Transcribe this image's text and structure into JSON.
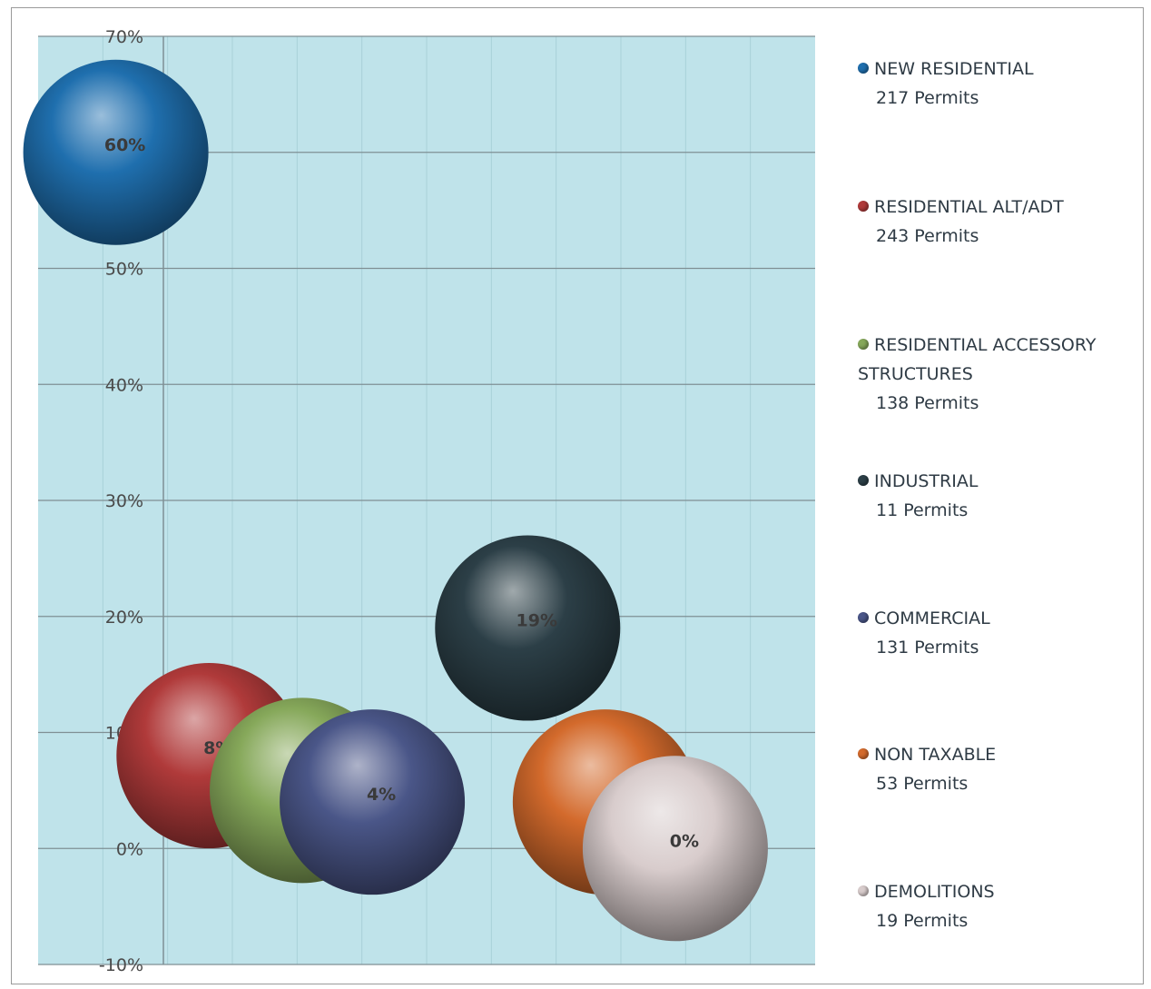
{
  "chart_data": {
    "type": "scatter",
    "subtype": "bubble",
    "title": "",
    "xlabel": "",
    "ylabel": "",
    "ylim": [
      -0.1,
      0.7
    ],
    "y_ticks": [
      "-10%",
      "0%",
      "10%",
      "20%",
      "30%",
      "40%",
      "50%",
      "60%",
      "70%"
    ],
    "y_tick_values": [
      -0.1,
      0,
      0.1,
      0.2,
      0.3,
      0.4,
      0.5,
      0.6,
      0.7
    ],
    "grid": true,
    "plot_background": "#bfe3ea",
    "legend_position": "right",
    "series": [
      {
        "name": "NEW RESIDENTIAL",
        "permits_label": "217 Permits",
        "x": 1,
        "y": 0.6,
        "label": "60%",
        "color": "#1f6fae"
      },
      {
        "name": "RESIDENTIAL ALT/ADT",
        "permits_label": "243 Permits",
        "x": 2.2,
        "y": 0.08,
        "label": "8%",
        "color": "#b03a3a"
      },
      {
        "name": "RESIDENTIAL ACCESSORY STRUCTURES",
        "permits_label": "138 Permits",
        "x": 3.4,
        "y": 0.05,
        "label": "5%",
        "color": "#86a85a"
      },
      {
        "name": "INDUSTRIAL",
        "permits_label": "11 Permits",
        "x": 6.3,
        "y": 0.19,
        "label": "19%",
        "color": "#2c3f47"
      },
      {
        "name": "COMMERCIAL",
        "permits_label": "131 Permits",
        "x": 4.3,
        "y": 0.04,
        "label": "4%",
        "color": "#4a5688"
      },
      {
        "name": "NON TAXABLE",
        "permits_label": "53 Permits",
        "x": 7.3,
        "y": 0.04,
        "label": "4%",
        "color": "#d36a2c"
      },
      {
        "name": "DEMOLITIONS",
        "permits_label": "19 Permits",
        "x": 8.2,
        "y": 0.0,
        "label": "0%",
        "color": "#d8cccc"
      }
    ]
  }
}
